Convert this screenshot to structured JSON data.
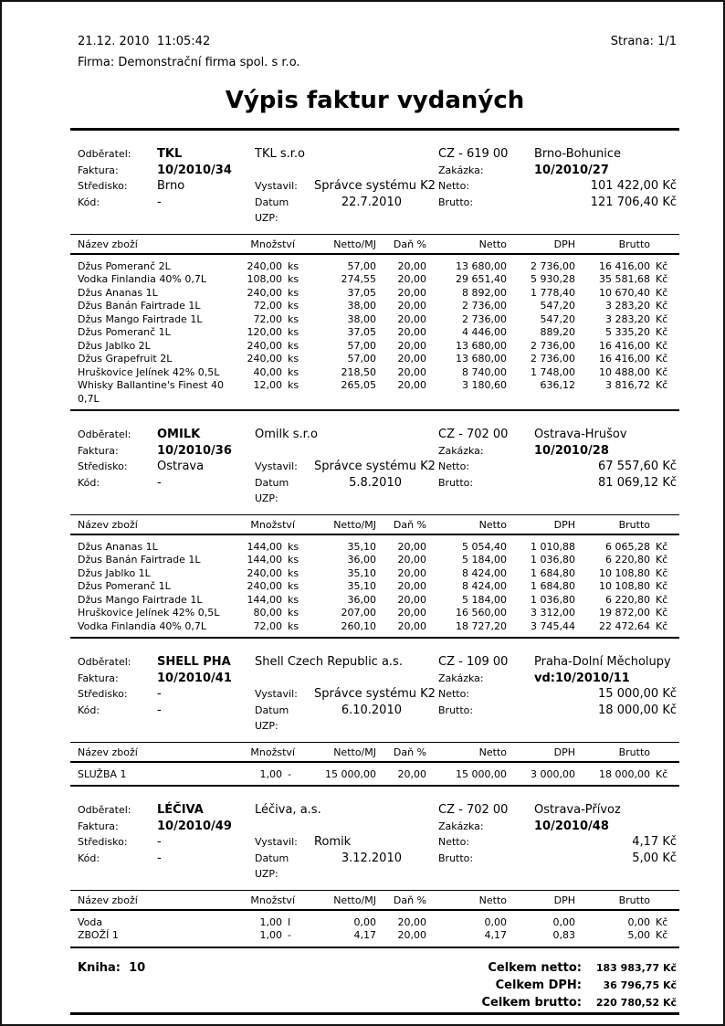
{
  "page": {
    "datetime": "21.12. 2010  11:05:42",
    "page_label": "Strana: 1/1",
    "company_line": "Firma: Demonstrační firma spol. s r.o.",
    "title": "Výpis faktur vydaných"
  },
  "labels": {
    "odberatel": "Odběratel:",
    "faktura": "Faktura:",
    "stredisko": "Středisko:",
    "kod": "Kód:",
    "vystavil": "Vystavil:",
    "datum_uzp": "Datum UZP:",
    "zakazka": "Zakázka:",
    "netto": "Netto:",
    "brutto": "Brutto:"
  },
  "table_headers": {
    "nazev": "Název zboží",
    "mnozstvi": "Množství",
    "netto_mj": "Netto/MJ",
    "dan": "Daň %",
    "netto": "Netto",
    "dph": "DPH",
    "brutto": "Brutto"
  },
  "invoices": [
    {
      "odberatel": "TKL",
      "company": "TKL s.r.o",
      "cz": "CZ - 619 00",
      "city": "Brno-Bohunice",
      "faktura": "10/2010/34",
      "zakazka": "10/2010/27",
      "stredisko": "Brno",
      "vystavil": "Správce systému K2",
      "netto": "101 422,00 Kč",
      "kod": "-",
      "datum_uzp": "22.7.2010",
      "brutto": "121 706,40 Kč",
      "items": [
        {
          "name": "Džus Pomeranč 2L",
          "qty": "240,00",
          "unit": "ks",
          "netto_mj": "57,00",
          "dan": "20,00",
          "netto": "13 680,00",
          "dph": "2 736,00",
          "brutto": "16 416,00",
          "currency": "Kč"
        },
        {
          "name": "Vodka Finlandia 40% 0,7L",
          "qty": "108,00",
          "unit": "ks",
          "netto_mj": "274,55",
          "dan": "20,00",
          "netto": "29 651,40",
          "dph": "5 930,28",
          "brutto": "35 581,68",
          "currency": "Kč"
        },
        {
          "name": "Džus Ananas 1L",
          "qty": "240,00",
          "unit": "ks",
          "netto_mj": "37,05",
          "dan": "20,00",
          "netto": "8 892,00",
          "dph": "1 778,40",
          "brutto": "10 670,40",
          "currency": "Kč"
        },
        {
          "name": "Džus Banán Fairtrade 1L",
          "qty": "72,00",
          "unit": "ks",
          "netto_mj": "38,00",
          "dan": "20,00",
          "netto": "2 736,00",
          "dph": "547,20",
          "brutto": "3 283,20",
          "currency": "Kč"
        },
        {
          "name": "Džus Mango Fairtrade 1L",
          "qty": "72,00",
          "unit": "ks",
          "netto_mj": "38,00",
          "dan": "20,00",
          "netto": "2 736,00",
          "dph": "547,20",
          "brutto": "3 283,20",
          "currency": "Kč"
        },
        {
          "name": "Džus Pomeranč 1L",
          "qty": "120,00",
          "unit": "ks",
          "netto_mj": "37,05",
          "dan": "20,00",
          "netto": "4 446,00",
          "dph": "889,20",
          "brutto": "5 335,20",
          "currency": "Kč"
        },
        {
          "name": "Džus Jablko 2L",
          "qty": "240,00",
          "unit": "ks",
          "netto_mj": "57,00",
          "dan": "20,00",
          "netto": "13 680,00",
          "dph": "2 736,00",
          "brutto": "16 416,00",
          "currency": "Kč"
        },
        {
          "name": "Džus Grapefruit 2L",
          "qty": "240,00",
          "unit": "ks",
          "netto_mj": "57,00",
          "dan": "20,00",
          "netto": "13 680,00",
          "dph": "2 736,00",
          "brutto": "16 416,00",
          "currency": "Kč"
        },
        {
          "name": "Hruškovice Jelínek 42% 0,5L",
          "qty": "40,00",
          "unit": "ks",
          "netto_mj": "218,50",
          "dan": "20,00",
          "netto": "8 740,00",
          "dph": "1 748,00",
          "brutto": "10 488,00",
          "currency": "Kč"
        },
        {
          "name": "Whisky Ballantine's Finest 40\n0,7L",
          "qty": "12,00",
          "unit": "ks",
          "netto_mj": "265,05",
          "dan": "20,00",
          "netto": "3 180,60",
          "dph": "636,12",
          "brutto": "3 816,72",
          "currency": "Kč"
        }
      ]
    },
    {
      "odberatel": "OMILK",
      "company": "Omilk s.r.o",
      "cz": "CZ - 702 00",
      "city": "Ostrava-Hrušov",
      "faktura": "10/2010/36",
      "zakazka": "10/2010/28",
      "stredisko": "Ostrava",
      "vystavil": "Správce systému K2",
      "netto": "67 557,60 Kč",
      "kod": "-",
      "datum_uzp": "5.8.2010",
      "brutto": "81 069,12 Kč",
      "items": [
        {
          "name": "Džus Ananas 1L",
          "qty": "144,00",
          "unit": "ks",
          "netto_mj": "35,10",
          "dan": "20,00",
          "netto": "5 054,40",
          "dph": "1 010,88",
          "brutto": "6 065,28",
          "currency": "Kč"
        },
        {
          "name": "Džus Banán Fairtrade 1L",
          "qty": "144,00",
          "unit": "ks",
          "netto_mj": "36,00",
          "dan": "20,00",
          "netto": "5 184,00",
          "dph": "1 036,80",
          "brutto": "6 220,80",
          "currency": "Kč"
        },
        {
          "name": "Džus Jablko 1L",
          "qty": "240,00",
          "unit": "ks",
          "netto_mj": "35,10",
          "dan": "20,00",
          "netto": "8 424,00",
          "dph": "1 684,80",
          "brutto": "10 108,80",
          "currency": "Kč"
        },
        {
          "name": "Džus Pomeranč 1L",
          "qty": "240,00",
          "unit": "ks",
          "netto_mj": "35,10",
          "dan": "20,00",
          "netto": "8 424,00",
          "dph": "1 684,80",
          "brutto": "10 108,80",
          "currency": "Kč"
        },
        {
          "name": "Džus Mango Fairtrade 1L",
          "qty": "144,00",
          "unit": "ks",
          "netto_mj": "36,00",
          "dan": "20,00",
          "netto": "5 184,00",
          "dph": "1 036,80",
          "brutto": "6 220,80",
          "currency": "Kč"
        },
        {
          "name": "Hruškovice Jelínek 42% 0,5L",
          "qty": "80,00",
          "unit": "ks",
          "netto_mj": "207,00",
          "dan": "20,00",
          "netto": "16 560,00",
          "dph": "3 312,00",
          "brutto": "19 872,00",
          "currency": "Kč"
        },
        {
          "name": "Vodka Finlandia 40% 0,7L",
          "qty": "72,00",
          "unit": "ks",
          "netto_mj": "260,10",
          "dan": "20,00",
          "netto": "18 727,20",
          "dph": "3 745,44",
          "brutto": "22 472,64",
          "currency": "Kč"
        }
      ]
    },
    {
      "odberatel": "SHELL PHA",
      "company": "Shell Czech Republic a.s.",
      "cz": "CZ - 109 00",
      "city": "Praha-Dolní Měcholupy",
      "faktura": "10/2010/41",
      "zakazka": "vd:10/2010/11",
      "stredisko": "-",
      "vystavil": "Správce systému K2",
      "netto": "15 000,00 Kč",
      "kod": "-",
      "datum_uzp": "6.10.2010",
      "brutto": "18 000,00 Kč",
      "items": [
        {
          "name": "SLUŽBA 1",
          "qty": "1,00",
          "unit": "-",
          "netto_mj": "15 000,00",
          "dan": "20,00",
          "netto": "15 000,00",
          "dph": "3 000,00",
          "brutto": "18 000,00",
          "currency": "Kč"
        }
      ]
    },
    {
      "odberatel": "LÉČIVA",
      "company": "Léčiva, a.s.",
      "cz": "CZ - 702 00",
      "city": "Ostrava-Přívoz",
      "faktura": "10/2010/49",
      "zakazka": "10/2010/48",
      "stredisko": "-",
      "vystavil": "Romik",
      "netto": "4,17 Kč",
      "kod": "-",
      "datum_uzp": "3.12.2010",
      "brutto": "5,00 Kč",
      "items": [
        {
          "name": "Voda",
          "qty": "1,00",
          "unit": "l",
          "netto_mj": "0,00",
          "dan": "20,00",
          "netto": "0,00",
          "dph": "0,00",
          "brutto": "0,00",
          "currency": "Kč"
        },
        {
          "name": "ZBOŽÍ 1",
          "qty": "1,00",
          "unit": "-",
          "netto_mj": "4,17",
          "dan": "20,00",
          "netto": "4,17",
          "dph": "0,83",
          "brutto": "5,00",
          "currency": "Kč"
        }
      ]
    }
  ],
  "footer": {
    "kniha": "Kniha:  10",
    "rows": [
      {
        "label": "Celkem netto:",
        "value": "183 983,77 Kč"
      },
      {
        "label": "Celkem DPH:",
        "value": "36 796,75 Kč"
      },
      {
        "label": "Celkem brutto:",
        "value": "220 780,52 Kč"
      }
    ]
  }
}
